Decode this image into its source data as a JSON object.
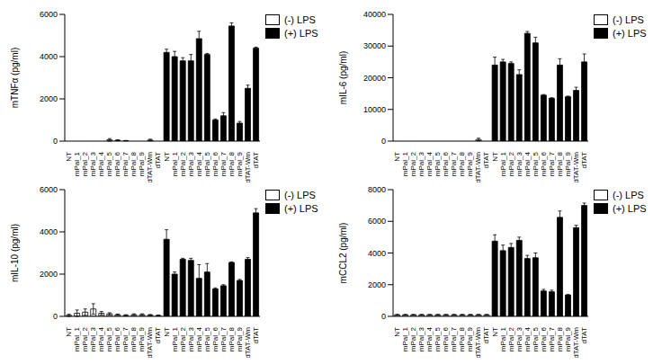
{
  "chart_data": [
    {
      "type": "bar",
      "y_label": "mTNFα (pg/ml)",
      "legend": "right",
      "stacked": true,
      "categories": [
        "NT",
        "mPal_1",
        "mPal_2",
        "mPal_3",
        "mPal_4",
        "mPal_5",
        "mPal_6",
        "mPal_7",
        "mPal_8",
        "mPal_9",
        "dTAT-Wm",
        "dTAT",
        "NT",
        "mPal_1",
        "mPal_2",
        "mPal_3",
        "mPal_4",
        "mPal_5",
        "mPal_6",
        "mPal_7",
        "mPal_8",
        "mPal_9",
        "dTAT-Wm",
        "dTAT"
      ],
      "ylim": [
        0,
        6000
      ],
      "yticks": [
        0,
        2000,
        4000,
        6000
      ],
      "series": [
        {
          "name": "(-) LPS",
          "color": "#ffffff",
          "values": [
            0,
            0,
            0,
            0,
            0,
            60,
            40,
            20,
            0,
            0,
            50,
            0,
            null,
            null,
            null,
            null,
            null,
            null,
            null,
            null,
            null,
            null,
            null,
            null
          ],
          "errors": [
            0,
            0,
            0,
            0,
            0,
            60,
            20,
            10,
            0,
            0,
            40,
            0,
            null,
            null,
            null,
            null,
            null,
            null,
            null,
            null,
            null,
            null,
            null,
            null
          ]
        },
        {
          "name": "(+) LPS",
          "color": "#000000",
          "values": [
            null,
            null,
            null,
            null,
            null,
            null,
            null,
            null,
            null,
            null,
            null,
            null,
            4200,
            4000,
            3800,
            3800,
            4850,
            4100,
            1000,
            1200,
            5450,
            850,
            2500,
            4400
          ],
          "errors": [
            null,
            null,
            null,
            null,
            null,
            null,
            null,
            null,
            null,
            null,
            null,
            null,
            150,
            250,
            150,
            300,
            350,
            50,
            50,
            150,
            150,
            80,
            150,
            50
          ]
        }
      ]
    },
    {
      "type": "bar",
      "y_label": "mIL-6 (pg/ml)",
      "legend": "right",
      "stacked": true,
      "categories": [
        "NT",
        "mPal_1",
        "mPal_2",
        "mPal_3",
        "mPal_4",
        "mPal_5",
        "mPal_6",
        "mPal_7",
        "mPal_8",
        "mPal_9",
        "dTAT-Wm",
        "dTAT",
        "NT",
        "mPal_1",
        "mPal_2",
        "mPal_3",
        "mPal_4",
        "mPal_5",
        "mPal_6",
        "mPal_7",
        "mPal_8",
        "mPal_9",
        "dTAT-Wm",
        "dTAT"
      ],
      "ylim": [
        0,
        40000
      ],
      "yticks": [
        0,
        10000,
        20000,
        30000,
        40000
      ],
      "series": [
        {
          "name": "(-) LPS",
          "color": "#ffffff",
          "values": [
            0,
            0,
            0,
            0,
            0,
            0,
            0,
            0,
            0,
            0,
            500,
            0,
            null,
            null,
            null,
            null,
            null,
            null,
            null,
            null,
            null,
            null,
            null,
            null
          ],
          "errors": [
            0,
            0,
            0,
            0,
            0,
            0,
            0,
            0,
            0,
            0,
            400,
            0,
            null,
            null,
            null,
            null,
            null,
            null,
            null,
            null,
            null,
            null,
            null,
            null
          ]
        },
        {
          "name": "(+) LPS",
          "color": "#000000",
          "values": [
            null,
            null,
            null,
            null,
            null,
            null,
            null,
            null,
            null,
            null,
            null,
            null,
            24000,
            25000,
            24500,
            21000,
            34000,
            31000,
            14500,
            13500,
            24000,
            14000,
            16000,
            25000
          ],
          "errors": [
            null,
            null,
            null,
            null,
            null,
            null,
            null,
            null,
            null,
            null,
            null,
            null,
            2500,
            800,
            500,
            1500,
            600,
            1800,
            200,
            200,
            2000,
            200,
            1000,
            2500
          ]
        }
      ]
    },
    {
      "type": "bar",
      "y_label": "mIL-10 (pg/ml)",
      "legend": "right",
      "stacked": true,
      "categories": [
        "NT",
        "mPal_1",
        "mPal_2",
        "mPal_3",
        "mPal_4",
        "mPal_5",
        "mPal_6",
        "mPal_7",
        "mPal_8",
        "mPal_9",
        "dTAT-Wm",
        "dTAT",
        "NT",
        "mPal_1",
        "mPal_2",
        "mPal_3",
        "mPal_4",
        "mPal_5",
        "mPal_6",
        "mPal_7",
        "mPal_8",
        "mPal_9",
        "dTAT-Wm",
        "dTAT"
      ],
      "ylim": [
        0,
        6000
      ],
      "yticks": [
        0,
        2000,
        4000,
        6000
      ],
      "series": [
        {
          "name": "(-) LPS",
          "color": "#ffffff",
          "values": [
            50,
            150,
            200,
            350,
            150,
            120,
            80,
            50,
            80,
            80,
            60,
            40,
            null,
            null,
            null,
            null,
            null,
            null,
            null,
            null,
            null,
            null,
            null,
            null
          ],
          "errors": [
            50,
            150,
            150,
            250,
            80,
            50,
            30,
            30,
            40,
            40,
            30,
            20,
            null,
            null,
            null,
            null,
            null,
            null,
            null,
            null,
            null,
            null,
            null,
            null
          ]
        },
        {
          "name": "(+) LPS",
          "color": "#000000",
          "values": [
            null,
            null,
            null,
            null,
            null,
            null,
            null,
            null,
            null,
            null,
            null,
            null,
            3650,
            2000,
            2700,
            2650,
            1800,
            2100,
            1300,
            1450,
            2550,
            1700,
            2700,
            4900
          ],
          "errors": [
            null,
            null,
            null,
            null,
            null,
            null,
            null,
            null,
            null,
            null,
            null,
            null,
            450,
            100,
            50,
            100,
            650,
            400,
            50,
            50,
            30,
            50,
            80,
            200
          ]
        }
      ]
    },
    {
      "type": "bar",
      "y_label": "mCCL2 (pg/ml)",
      "legend": "right",
      "stacked": true,
      "categories": [
        "NT",
        "mPal_1",
        "mPal_2",
        "mPal_3",
        "mPal_4",
        "mPal_5",
        "mPal_6",
        "mPal_7",
        "mPal_8",
        "mPal_9",
        "dTAT-Wm",
        "dTAT",
        "NT",
        "mPal_1",
        "mPal_2",
        "mPal_3",
        "mPal_4",
        "mPal_5",
        "mPal_6",
        "mPal_7",
        "mPal_8",
        "mPal_9",
        "dTAT-Wm",
        "dTAT"
      ],
      "ylim": [
        0,
        8000
      ],
      "yticks": [
        0,
        2000,
        4000,
        6000,
        8000
      ],
      "series": [
        {
          "name": "(-) LPS",
          "color": "#ffffff",
          "values": [
            100,
            100,
            100,
            100,
            100,
            100,
            100,
            100,
            100,
            100,
            100,
            100,
            null,
            null,
            null,
            null,
            null,
            null,
            null,
            null,
            null,
            null,
            null,
            null
          ],
          "errors": [
            20,
            20,
            20,
            20,
            20,
            20,
            20,
            20,
            20,
            20,
            20,
            20,
            null,
            null,
            null,
            null,
            null,
            null,
            null,
            null,
            null,
            null,
            null,
            null
          ]
        },
        {
          "name": "(+) LPS",
          "color": "#000000",
          "values": [
            null,
            null,
            null,
            null,
            null,
            null,
            null,
            null,
            null,
            null,
            null,
            null,
            4750,
            4150,
            4350,
            4800,
            3650,
            3700,
            1600,
            1550,
            6250,
            1350,
            5600,
            7000
          ],
          "errors": [
            null,
            null,
            null,
            null,
            null,
            null,
            null,
            null,
            null,
            null,
            null,
            null,
            400,
            350,
            250,
            200,
            200,
            300,
            100,
            100,
            400,
            30,
            150,
            150
          ]
        }
      ]
    }
  ]
}
